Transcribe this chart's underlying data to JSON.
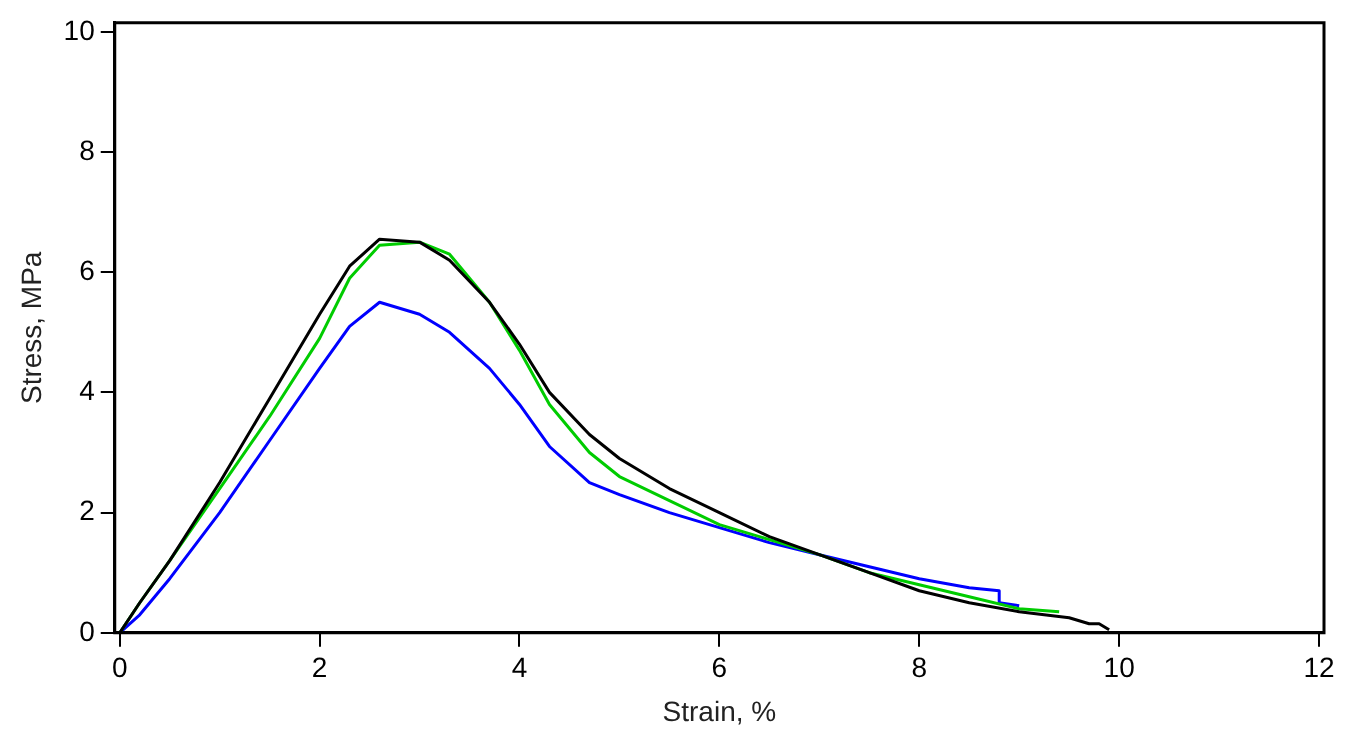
{
  "chart_data": {
    "type": "line",
    "xlabel": "Strain, %",
    "ylabel": "Stress, MPa",
    "xlim": [
      -0.05,
      12.05
    ],
    "ylim": [
      0,
      10.15
    ],
    "xticks": [
      0,
      2,
      4,
      6,
      8,
      10,
      12
    ],
    "yticks": [
      0,
      2,
      4,
      6,
      8,
      10
    ],
    "grid": false,
    "legend": false,
    "marker": "none",
    "line_style": "solid",
    "series": [
      {
        "color": "#000000",
        "x": [
          0,
          0.2,
          0.5,
          1,
          1.5,
          2,
          2.3,
          2.6,
          3,
          3.3,
          3.7,
          4,
          4.3,
          4.7,
          5,
          5.5,
          6,
          6.5,
          7,
          7.5,
          8,
          8.5,
          9,
          9.5,
          9.7,
          9.8,
          9.9
        ],
        "values": [
          0,
          0.5,
          1.2,
          2.5,
          3.9,
          5.3,
          6.1,
          6.55,
          6.5,
          6.2,
          5.5,
          4.8,
          4,
          3.3,
          2.9,
          2.4,
          2,
          1.6,
          1.3,
          1,
          0.7,
          0.5,
          0.35,
          0.25,
          0.15,
          0.15,
          0.05
        ]
      },
      {
        "color": "#00cc00",
        "x": [
          0,
          0.2,
          0.5,
          1,
          1.5,
          2,
          2.3,
          2.6,
          3,
          3.3,
          3.7,
          4,
          4.3,
          4.7,
          5,
          5.5,
          6,
          6.5,
          7,
          7.5,
          8,
          8.5,
          9,
          9.4
        ],
        "values": [
          0,
          0.5,
          1.2,
          2.4,
          3.6,
          4.9,
          5.9,
          6.45,
          6.5,
          6.3,
          5.5,
          4.7,
          3.8,
          3,
          2.6,
          2.2,
          1.8,
          1.55,
          1.3,
          1,
          0.8,
          0.6,
          0.4,
          0.35
        ]
      },
      {
        "color": "#0000ff",
        "x": [
          0,
          0.2,
          0.5,
          1,
          1.5,
          2,
          2.3,
          2.6,
          3,
          3.3,
          3.7,
          4,
          4.3,
          4.7,
          5,
          5.5,
          6,
          6.5,
          7,
          7.5,
          8,
          8.5,
          8.8,
          8.8,
          9
        ],
        "values": [
          0,
          0.3,
          0.9,
          2,
          3.2,
          4.4,
          5.1,
          5.5,
          5.3,
          5,
          4.4,
          3.8,
          3.1,
          2.5,
          2.3,
          2,
          1.75,
          1.5,
          1.3,
          1.1,
          0.9,
          0.75,
          0.7,
          0.5,
          0.45
        ]
      }
    ]
  }
}
